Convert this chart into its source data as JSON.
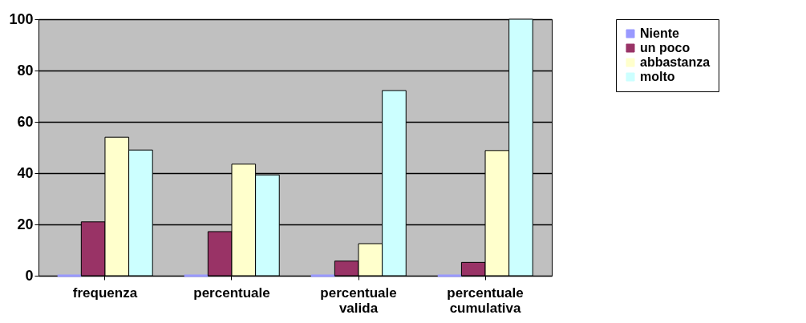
{
  "chart_data": {
    "type": "bar",
    "categories": [
      "frequenza",
      "percentuale",
      "percentuale valida",
      "percentuale cumulativa"
    ],
    "series": [
      {
        "name": "Niente",
        "color": "#9999ff",
        "values": [
          0,
          0,
          0,
          0
        ]
      },
      {
        "name": "un poco",
        "color": "#993366",
        "values": [
          21,
          17.2,
          5.7,
          5.2
        ]
      },
      {
        "name": "abbastanza",
        "color": "#ffffcc",
        "values": [
          54,
          43.5,
          12.5,
          48.8
        ]
      },
      {
        "name": "molto",
        "color": "#ccffff",
        "values": [
          49,
          39.3,
          72.2,
          100
        ]
      }
    ],
    "ylim": [
      0,
      100
    ],
    "yticks": [
      0,
      20,
      40,
      60,
      80,
      100
    ],
    "grid": "y",
    "legend": "right"
  }
}
